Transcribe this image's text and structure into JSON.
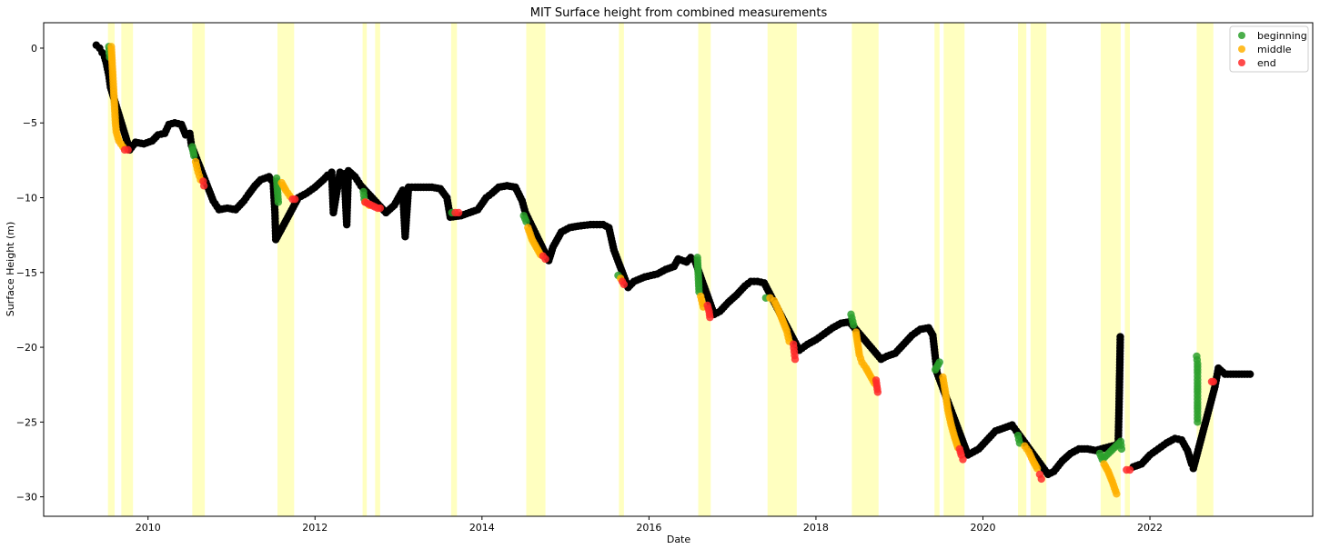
{
  "chart_data": {
    "type": "scatter",
    "title": "MIT Surface height from combined measurements",
    "xlabel": "Date",
    "ylabel": "Surface Height (m)",
    "xlim": [
      2008.75,
      2023.95
    ],
    "ylim": [
      -31.3,
      1.7
    ],
    "x_ticks": [
      2010,
      2012,
      2014,
      2016,
      2018,
      2020,
      2022
    ],
    "y_ticks": [
      0,
      -5,
      -10,
      -15,
      -20,
      -25,
      -30
    ],
    "legend_position": "top-right",
    "legend": [
      {
        "name": "beginning",
        "color": "#2ca02c"
      },
      {
        "name": "middle",
        "color": "#ffb000"
      },
      {
        "name": "end",
        "color": "#ff2a2a"
      }
    ],
    "background_series_color": "#000000",
    "shaded_band_color": "#ffffc0",
    "shaded_periods": [
      [
        2009.52,
        2009.6
      ],
      [
        2009.68,
        2009.82
      ],
      [
        2010.53,
        2010.68
      ],
      [
        2011.55,
        2011.75
      ],
      [
        2012.57,
        2012.62
      ],
      [
        2012.72,
        2012.78
      ],
      [
        2013.63,
        2013.7
      ],
      [
        2014.53,
        2014.76
      ],
      [
        2015.64,
        2015.7
      ],
      [
        2016.59,
        2016.74
      ],
      [
        2017.42,
        2017.77
      ],
      [
        2018.43,
        2018.75
      ],
      [
        2019.42,
        2019.48
      ],
      [
        2019.53,
        2019.78
      ],
      [
        2020.42,
        2020.52
      ],
      [
        2020.57,
        2020.76
      ],
      [
        2021.41,
        2021.65
      ],
      [
        2021.7,
        2021.76
      ],
      [
        2022.56,
        2022.76
      ]
    ],
    "series": [
      {
        "role": "background",
        "color": "#000000",
        "points": [
          [
            2009.38,
            0.2
          ],
          [
            2009.42,
            0.0
          ],
          [
            2009.45,
            -0.3
          ],
          [
            2009.48,
            -0.6
          ],
          [
            2009.5,
            -1.0
          ],
          [
            2009.53,
            -1.8
          ],
          [
            2009.55,
            -2.6
          ],
          [
            2009.78,
            -6.8
          ],
          [
            2009.85,
            -6.3
          ],
          [
            2009.95,
            -6.4
          ],
          [
            2010.05,
            -6.2
          ],
          [
            2010.12,
            -5.8
          ],
          [
            2010.2,
            -5.7
          ],
          [
            2010.25,
            -5.1
          ],
          [
            2010.32,
            -5.0
          ],
          [
            2010.4,
            -5.1
          ],
          [
            2010.45,
            -5.8
          ],
          [
            2010.5,
            -5.7
          ],
          [
            2010.52,
            -6.5
          ],
          [
            2010.78,
            -10.2
          ],
          [
            2010.85,
            -10.8
          ],
          [
            2010.95,
            -10.7
          ],
          [
            2011.05,
            -10.8
          ],
          [
            2011.1,
            -10.5
          ],
          [
            2011.15,
            -10.2
          ],
          [
            2011.2,
            -9.8
          ],
          [
            2011.28,
            -9.2
          ],
          [
            2011.35,
            -8.8
          ],
          [
            2011.45,
            -8.6
          ],
          [
            2011.5,
            -9.0
          ],
          [
            2011.52,
            -11.0
          ],
          [
            2011.53,
            -12.8
          ],
          [
            2011.8,
            -10.0
          ],
          [
            2011.9,
            -9.7
          ],
          [
            2012.0,
            -9.3
          ],
          [
            2012.1,
            -8.8
          ],
          [
            2012.15,
            -8.5
          ],
          [
            2012.2,
            -8.3
          ],
          [
            2012.22,
            -11.0
          ],
          [
            2012.3,
            -8.3
          ],
          [
            2012.35,
            -8.4
          ],
          [
            2012.38,
            -11.8
          ],
          [
            2012.4,
            -8.2
          ],
          [
            2012.48,
            -8.6
          ],
          [
            2012.55,
            -9.2
          ],
          [
            2012.85,
            -11.0
          ],
          [
            2012.95,
            -10.5
          ],
          [
            2013.05,
            -9.5
          ],
          [
            2013.08,
            -12.6
          ],
          [
            2013.12,
            -9.3
          ],
          [
            2013.2,
            -9.3
          ],
          [
            2013.3,
            -9.3
          ],
          [
            2013.4,
            -9.3
          ],
          [
            2013.5,
            -9.4
          ],
          [
            2013.58,
            -10.0
          ],
          [
            2013.62,
            -11.3
          ],
          [
            2013.75,
            -11.2
          ],
          [
            2013.85,
            -11.0
          ],
          [
            2013.95,
            -10.8
          ],
          [
            2014.05,
            -10.0
          ],
          [
            2014.12,
            -9.7
          ],
          [
            2014.2,
            -9.3
          ],
          [
            2014.3,
            -9.2
          ],
          [
            2014.4,
            -9.3
          ],
          [
            2014.48,
            -10.2
          ],
          [
            2014.52,
            -11.0
          ],
          [
            2014.8,
            -14.2
          ],
          [
            2014.85,
            -13.3
          ],
          [
            2014.9,
            -12.8
          ],
          [
            2014.95,
            -12.3
          ],
          [
            2015.05,
            -12.0
          ],
          [
            2015.15,
            -11.9
          ],
          [
            2015.3,
            -11.8
          ],
          [
            2015.45,
            -11.8
          ],
          [
            2015.52,
            -12.0
          ],
          [
            2015.58,
            -13.5
          ],
          [
            2015.75,
            -16.0
          ],
          [
            2015.82,
            -15.6
          ],
          [
            2015.95,
            -15.3
          ],
          [
            2016.1,
            -15.1
          ],
          [
            2016.2,
            -14.8
          ],
          [
            2016.3,
            -14.6
          ],
          [
            2016.35,
            -14.1
          ],
          [
            2016.45,
            -14.3
          ],
          [
            2016.5,
            -14.0
          ],
          [
            2016.55,
            -14.2
          ],
          [
            2016.78,
            -17.8
          ],
          [
            2016.85,
            -17.6
          ],
          [
            2016.95,
            -17.0
          ],
          [
            2017.05,
            -16.5
          ],
          [
            2017.15,
            -15.9
          ],
          [
            2017.22,
            -15.6
          ],
          [
            2017.3,
            -15.6
          ],
          [
            2017.38,
            -15.7
          ],
          [
            2017.8,
            -20.2
          ],
          [
            2017.9,
            -19.8
          ],
          [
            2018.0,
            -19.5
          ],
          [
            2018.1,
            -19.1
          ],
          [
            2018.2,
            -18.7
          ],
          [
            2018.3,
            -18.4
          ],
          [
            2018.4,
            -18.3
          ],
          [
            2018.78,
            -20.8
          ],
          [
            2018.85,
            -20.6
          ],
          [
            2018.95,
            -20.4
          ],
          [
            2019.05,
            -19.8
          ],
          [
            2019.15,
            -19.2
          ],
          [
            2019.25,
            -18.8
          ],
          [
            2019.35,
            -18.7
          ],
          [
            2019.4,
            -19.2
          ],
          [
            2019.45,
            -21.7
          ],
          [
            2019.82,
            -27.2
          ],
          [
            2019.95,
            -26.8
          ],
          [
            2020.05,
            -26.2
          ],
          [
            2020.15,
            -25.6
          ],
          [
            2020.25,
            -25.4
          ],
          [
            2020.35,
            -25.2
          ],
          [
            2020.4,
            -25.6
          ],
          [
            2020.78,
            -28.5
          ],
          [
            2020.85,
            -28.3
          ],
          [
            2020.95,
            -27.6
          ],
          [
            2021.05,
            -27.1
          ],
          [
            2021.15,
            -26.8
          ],
          [
            2021.25,
            -26.8
          ],
          [
            2021.35,
            -26.9
          ],
          [
            2021.62,
            -26.5
          ],
          [
            2021.63,
            -24.0
          ],
          [
            2021.64,
            -21.0
          ],
          [
            2021.645,
            -19.3
          ],
          [
            2021.8,
            -28.0
          ],
          [
            2021.9,
            -27.8
          ],
          [
            2022.0,
            -27.2
          ],
          [
            2022.1,
            -26.8
          ],
          [
            2022.2,
            -26.4
          ],
          [
            2022.3,
            -26.1
          ],
          [
            2022.38,
            -26.2
          ],
          [
            2022.45,
            -26.9
          ],
          [
            2022.5,
            -27.8
          ],
          [
            2022.52,
            -28.1
          ],
          [
            2022.78,
            -22.6
          ],
          [
            2022.82,
            -21.4
          ],
          [
            2022.9,
            -21.8
          ],
          [
            2023.0,
            -21.8
          ],
          [
            2023.1,
            -21.8
          ],
          [
            2023.2,
            -21.8
          ]
        ]
      },
      {
        "name": "beginning",
        "color": "#2ca02c",
        "points": [
          [
            2009.53,
            0.1
          ],
          [
            2009.54,
            -0.6
          ],
          [
            2010.53,
            -6.6
          ],
          [
            2010.55,
            -7.2
          ],
          [
            2011.54,
            -8.7
          ],
          [
            2011.55,
            -9.5
          ],
          [
            2011.56,
            -10.3
          ],
          [
            2012.58,
            -9.6
          ],
          [
            2012.59,
            -10.1
          ],
          [
            2013.64,
            -11.0
          ],
          [
            2014.5,
            -11.2
          ],
          [
            2014.53,
            -11.6
          ],
          [
            2015.63,
            -15.2
          ],
          [
            2016.58,
            -14.0
          ],
          [
            2016.59,
            -15.1
          ],
          [
            2016.6,
            -16.3
          ],
          [
            2017.4,
            -16.7
          ],
          [
            2018.42,
            -17.8
          ],
          [
            2018.45,
            -18.5
          ],
          [
            2019.43,
            -21.5
          ],
          [
            2019.48,
            -21.0
          ],
          [
            2020.42,
            -25.9
          ],
          [
            2020.44,
            -26.4
          ],
          [
            2021.4,
            -27.1
          ],
          [
            2021.43,
            -27.5
          ],
          [
            2021.65,
            -26.3
          ],
          [
            2021.66,
            -26.8
          ],
          [
            2022.56,
            -20.6
          ],
          [
            2022.57,
            -21.1
          ],
          [
            2022.57,
            -21.7
          ],
          [
            2022.57,
            -22.4
          ],
          [
            2022.57,
            -23.0
          ],
          [
            2022.57,
            -23.7
          ],
          [
            2022.57,
            -24.3
          ],
          [
            2022.57,
            -25.0
          ]
        ]
      },
      {
        "name": "middle",
        "color": "#ffb000",
        "points": [
          [
            2009.56,
            0.1
          ],
          [
            2009.57,
            -1.0
          ],
          [
            2009.58,
            -2.0
          ],
          [
            2009.59,
            -3.0
          ],
          [
            2009.6,
            -4.0
          ],
          [
            2009.61,
            -5.0
          ],
          [
            2009.62,
            -5.6
          ],
          [
            2009.65,
            -6.2
          ],
          [
            2009.7,
            -6.6
          ],
          [
            2010.57,
            -7.6
          ],
          [
            2010.6,
            -8.3
          ],
          [
            2010.63,
            -8.8
          ],
          [
            2011.6,
            -9.0
          ],
          [
            2011.65,
            -9.5
          ],
          [
            2011.7,
            -9.9
          ],
          [
            2012.6,
            -10.3
          ],
          [
            2012.65,
            -10.5
          ],
          [
            2014.55,
            -12.0
          ],
          [
            2014.6,
            -12.8
          ],
          [
            2014.65,
            -13.3
          ],
          [
            2014.7,
            -13.8
          ],
          [
            2015.66,
            -15.4
          ],
          [
            2016.62,
            -16.6
          ],
          [
            2016.65,
            -17.3
          ],
          [
            2017.45,
            -16.7
          ],
          [
            2017.5,
            -16.9
          ],
          [
            2017.55,
            -17.5
          ],
          [
            2017.6,
            -18.2
          ],
          [
            2017.65,
            -18.9
          ],
          [
            2017.68,
            -19.6
          ],
          [
            2018.48,
            -19.0
          ],
          [
            2018.52,
            -20.5
          ],
          [
            2018.55,
            -21.0
          ],
          [
            2018.6,
            -21.4
          ],
          [
            2018.65,
            -21.9
          ],
          [
            2018.7,
            -22.4
          ],
          [
            2019.52,
            -22.0
          ],
          [
            2019.55,
            -23.0
          ],
          [
            2019.58,
            -24.2
          ],
          [
            2019.62,
            -25.2
          ],
          [
            2019.66,
            -26.0
          ],
          [
            2019.7,
            -26.7
          ],
          [
            2020.5,
            -26.6
          ],
          [
            2020.55,
            -27.0
          ],
          [
            2020.6,
            -27.6
          ],
          [
            2020.65,
            -28.1
          ],
          [
            2021.45,
            -27.8
          ],
          [
            2021.5,
            -28.3
          ],
          [
            2021.55,
            -29.0
          ],
          [
            2021.6,
            -29.8
          ]
        ]
      },
      {
        "name": "end",
        "color": "#ff2a2a",
        "points": [
          [
            2009.72,
            -6.8
          ],
          [
            2009.76,
            -6.8
          ],
          [
            2010.66,
            -8.9
          ],
          [
            2010.67,
            -9.2
          ],
          [
            2011.73,
            -10.1
          ],
          [
            2011.76,
            -10.1
          ],
          [
            2012.6,
            -10.3
          ],
          [
            2012.75,
            -10.7
          ],
          [
            2012.78,
            -10.7
          ],
          [
            2013.68,
            -11.0
          ],
          [
            2013.72,
            -11.0
          ],
          [
            2014.73,
            -13.9
          ],
          [
            2014.76,
            -14.1
          ],
          [
            2015.68,
            -15.6
          ],
          [
            2015.7,
            -15.8
          ],
          [
            2016.7,
            -17.2
          ],
          [
            2016.72,
            -17.6
          ],
          [
            2016.73,
            -18.0
          ],
          [
            2017.73,
            -19.8
          ],
          [
            2017.74,
            -20.3
          ],
          [
            2017.75,
            -20.8
          ],
          [
            2018.72,
            -22.2
          ],
          [
            2018.73,
            -22.6
          ],
          [
            2018.74,
            -23.0
          ],
          [
            2019.72,
            -26.8
          ],
          [
            2019.74,
            -27.2
          ],
          [
            2019.76,
            -27.5
          ],
          [
            2020.68,
            -28.5
          ],
          [
            2020.7,
            -28.8
          ],
          [
            2021.72,
            -28.2
          ],
          [
            2021.76,
            -28.2
          ],
          [
            2022.74,
            -22.3
          ],
          [
            2022.76,
            -22.3
          ]
        ]
      }
    ]
  }
}
